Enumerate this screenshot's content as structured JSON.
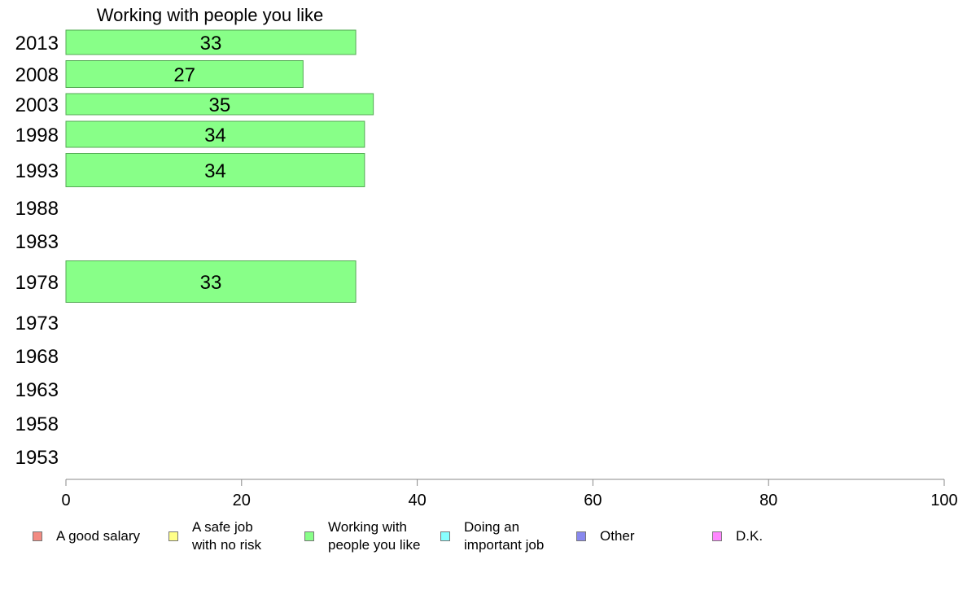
{
  "chart_data": {
    "type": "bar",
    "orientation": "horizontal",
    "title": "Working with people you like",
    "categories": [
      "2013",
      "2008",
      "2003",
      "1998",
      "1993",
      "1988",
      "1983",
      "1978",
      "1973",
      "1968",
      "1963",
      "1958",
      "1953"
    ],
    "series": [
      {
        "name": "Working with people you like",
        "color": "#88ff88",
        "values": [
          33,
          27,
          35,
          34,
          34,
          null,
          null,
          33,
          null,
          null,
          null,
          null,
          null
        ],
        "labels": [
          "33",
          "27",
          "35",
          "34",
          "34",
          "",
          "",
          "33",
          "",
          "",
          "",
          "",
          ""
        ]
      }
    ],
    "xlim": [
      0,
      100
    ],
    "xticks": [
      "0",
      "20",
      "40",
      "60",
      "80",
      "100"
    ],
    "xlabel": "",
    "ylabel": "",
    "grid": false,
    "legend_position": "bottom"
  },
  "legend": {
    "items": [
      {
        "label": "A good salary",
        "color": "#f28b82"
      },
      {
        "label": "A safe job\nwith no risk",
        "color": "#ffff88"
      },
      {
        "label": "Working with\npeople you like",
        "color": "#88ff88"
      },
      {
        "label": "Doing an\nimportant job",
        "color": "#88ffff"
      },
      {
        "label": "Other",
        "color": "#8888ee"
      },
      {
        "label": "D.K.",
        "color": "#ff88ff"
      }
    ]
  }
}
